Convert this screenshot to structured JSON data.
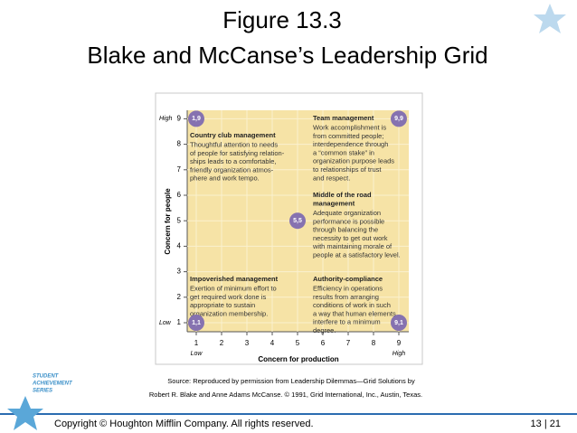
{
  "slide": {
    "title_lines": [
      "Figure 13.3",
      "Blake and McCanse’s Leadership Grid"
    ],
    "grid": {
      "y_axis": {
        "title": "Concern for people",
        "ticks": [
          "1",
          "2",
          "3",
          "4",
          "5",
          "6",
          "7",
          "8",
          "9"
        ],
        "low": "Low",
        "high": "High"
      },
      "x_axis": {
        "title": "Concern for production",
        "ticks": [
          "1",
          "2",
          "3",
          "4",
          "5",
          "6",
          "7",
          "8",
          "9"
        ],
        "low": "Low",
        "high": "High"
      },
      "points": [
        "1,9",
        "9,9",
        "5,5",
        "1,1",
        "9,1"
      ],
      "styles": [
        {
          "heading": "Country club management",
          "lines": [
            "Thoughtful attention to needs",
            "of people for satisfying relation-",
            "ships leads to a comfortable,",
            "friendly organization atmos-",
            "phere and work tempo."
          ]
        },
        {
          "heading": "Team management",
          "lines": [
            "Work accomplishment is",
            "from committed people;",
            "interdependence through",
            "a “common stake” in",
            "organization purpose leads",
            "to relationships of trust",
            "and respect."
          ]
        },
        {
          "heading": "Middle of the road management",
          "lines": [
            "Adequate organization",
            "performance is possible",
            "through balancing the",
            "necessity to get out work",
            "with maintaining morale of",
            "people at a satisfactory level."
          ]
        },
        {
          "heading": "Impoverished management",
          "lines": [
            "Exertion of minimum effort to",
            "get required work done is",
            "appropriate to sustain",
            "organization membership."
          ]
        },
        {
          "heading": "Authority-compliance",
          "lines": [
            "Efficiency in operations",
            "results from arranging",
            "conditions of work in such",
            "a way that human elements",
            "interfere to a minimum",
            "degree."
          ]
        }
      ]
    },
    "source_lines": [
      "Source: Reproduced by permission from Leadership Dilemmas—Grid Solutions by",
      "Robert R. Blake and Anne Adams McCanse. © 1991, Grid International, Inc., Austin, Texas."
    ],
    "logo_lines": [
      "STUDENT",
      "ACHIEVEMENT",
      "SERIES"
    ],
    "footer": {
      "copyright": "Copyright © Houghton Mifflin Company. All rights reserved.",
      "page": "13 | 21"
    }
  }
}
